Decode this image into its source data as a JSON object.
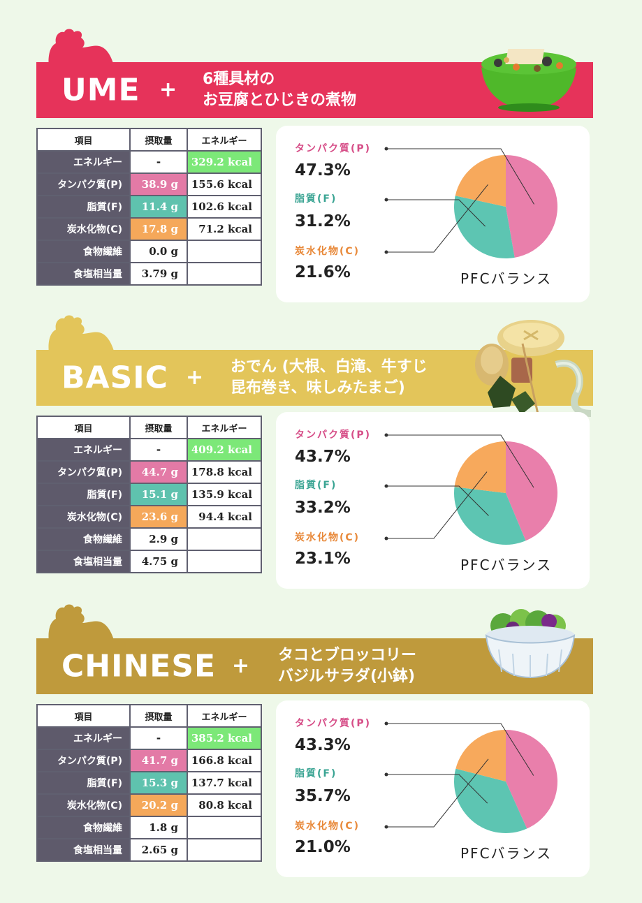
{
  "header_cols": [
    "項目",
    "摂取量",
    "エネルギー"
  ],
  "row_labels": [
    "エネルギー",
    "タンパク質(P)",
    "脂質(F)",
    "炭水化物(C)",
    "食物繊維",
    "食塩相当量"
  ],
  "pie_labels": {
    "p": "タンパク質(P)",
    "f": "脂質(F)",
    "c": "炭水化物(C)"
  },
  "pfc_title": "PFCバランス",
  "colors": {
    "protein": "#e97fab",
    "fat": "#5dc5b2",
    "carb": "#f7a95c",
    "ume_banner": "#e6335a",
    "basic_banner": "#e3c55a",
    "chinese_banner": "#bf9a3c"
  },
  "sections": [
    {
      "name": "UME",
      "plus": "+",
      "desc_line1": "6種具材の",
      "desc_line2": "お豆腐とひじきの煮物",
      "intake": [
        "-",
        "38.9 g",
        "11.4 g",
        "17.8 g",
        "0.0 g",
        "3.79 g"
      ],
      "energy": [
        "329.2 kcal",
        "155.6 kcal",
        "102.6 kcal",
        "71.2 kcal",
        "",
        ""
      ],
      "pfc": {
        "p": "47.3%",
        "f": "31.2%",
        "c": "21.6%"
      },
      "pfc_values": [
        47.3,
        31.2,
        21.6
      ]
    },
    {
      "name": "BASIC",
      "plus": "+",
      "desc_line1": "おでん (大根、白滝、牛すじ",
      "desc_line2": "昆布巻き、味しみたまご)",
      "intake": [
        "-",
        "44.7 g",
        "15.1 g",
        "23.6 g",
        "2.9 g",
        "4.75 g"
      ],
      "energy": [
        "409.2 kcal",
        "178.8 kcal",
        "135.9 kcal",
        "94.4 kcal",
        "",
        ""
      ],
      "pfc": {
        "p": "43.7%",
        "f": "33.2%",
        "c": "23.1%"
      },
      "pfc_values": [
        43.7,
        33.2,
        23.1
      ]
    },
    {
      "name": "CHINESE",
      "plus": "+",
      "desc_line1": "タコとブロッコリー",
      "desc_line2": "バジルサラダ(小鉢)",
      "intake": [
        "-",
        "41.7 g",
        "15.3 g",
        "20.2 g",
        "1.8 g",
        "2.65 g"
      ],
      "energy": [
        "385.2 kcal",
        "166.8 kcal",
        "137.7 kcal",
        "80.8 kcal",
        "",
        ""
      ],
      "pfc": {
        "p": "43.3%",
        "f": "35.7%",
        "c": "21.0%"
      },
      "pfc_values": [
        43.3,
        35.7,
        21.0
      ]
    }
  ]
}
